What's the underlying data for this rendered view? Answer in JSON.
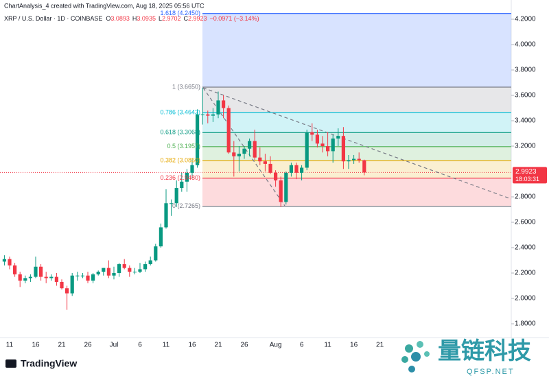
{
  "header": {
    "credit": "ChartAnalysis_4 created with TradingView.com, Aug 18, 2025 05:56 UTC",
    "symbol": "XRP / U.S. Dollar · 1D · COINBASE",
    "fields": [
      {
        "key": "O",
        "value": "3.0893"
      },
      {
        "key": "H",
        "value": "3.0935"
      },
      {
        "key": "L",
        "value": "2.9702"
      },
      {
        "key": "C",
        "value": "2.9923"
      }
    ],
    "change": "−0.0971 (−3.14%)"
  },
  "branding": {
    "logo": "TradingView",
    "watermark": "量链科技",
    "watermark_url": "QFSP.NET"
  },
  "chart_data": {
    "type": "candlestick",
    "categories": [
      null,
      "11",
      null,
      null,
      null,
      null,
      "16",
      null,
      null,
      null,
      null,
      "21",
      null,
      null,
      null,
      null,
      "26",
      null,
      null,
      null,
      null,
      "Jul",
      null,
      null,
      null,
      null,
      "6",
      null,
      null,
      null,
      null,
      "11",
      null,
      null,
      null,
      null,
      "16",
      null,
      null,
      null,
      null,
      "21",
      null,
      null,
      null,
      null,
      "26",
      null,
      null,
      null,
      null,
      null,
      "Aug",
      null,
      null,
      null,
      null,
      "6",
      null,
      null,
      null,
      null,
      "11",
      null,
      null,
      null,
      null,
      "16",
      null,
      null,
      null,
      null,
      "21"
    ],
    "open": [
      2.29,
      2.31,
      2.26,
      2.19,
      2.14,
      2.16,
      2.17,
      2.25,
      2.17,
      2.16,
      2.17,
      2.13,
      2.08,
      2.04,
      2.18,
      2.18,
      2.18,
      2.14,
      2.19,
      2.21,
      2.24,
      2.18,
      2.2,
      2.27,
      2.24,
      2.21,
      2.21,
      2.23,
      2.27,
      2.3,
      2.41,
      2.56,
      2.75,
      2.75,
      2.87,
      2.92,
      2.99,
      3.05,
      3.45,
      3.45,
      3.44,
      3.45,
      3.56,
      3.5,
      3.15,
      3.12,
      3.14,
      3.18,
      3.24,
      3.11,
      3.08,
      3.06,
      2.99,
      2.93,
      2.76,
      2.99,
      3.05,
      2.99,
      3.03,
      3.31,
      3.29,
      3.22,
      3.2,
      3.16,
      3.26,
      3.28,
      3.08,
      3.09,
      3.1,
      3.0893,
      null,
      null,
      null
    ],
    "high": [
      2.34,
      2.33,
      2.28,
      2.21,
      2.18,
      2.19,
      2.33,
      2.27,
      2.21,
      2.19,
      2.2,
      2.15,
      2.1,
      2.2,
      2.21,
      2.2,
      2.21,
      2.2,
      2.22,
      2.24,
      2.3,
      2.25,
      2.28,
      2.31,
      2.26,
      2.24,
      2.28,
      2.29,
      2.33,
      2.43,
      2.59,
      2.86,
      2.78,
      2.93,
      2.99,
      3.02,
      3.1,
      3.49,
      3.66,
      3.48,
      3.5,
      3.63,
      3.6,
      3.52,
      3.24,
      3.2,
      3.2,
      3.26,
      3.33,
      3.19,
      3.14,
      3.12,
      3.01,
      2.96,
      3.0,
      3.07,
      3.07,
      3.05,
      3.33,
      3.38,
      3.33,
      3.28,
      3.31,
      3.29,
      3.34,
      3.35,
      3.13,
      3.13,
      3.15,
      3.0935,
      null,
      null,
      null
    ],
    "low": [
      2.26,
      2.23,
      2.17,
      2.09,
      2.12,
      2.13,
      2.16,
      2.14,
      2.12,
      2.14,
      2.1,
      2.07,
      1.91,
      2.02,
      2.14,
      2.16,
      2.12,
      2.12,
      2.18,
      2.18,
      2.16,
      2.15,
      2.17,
      2.23,
      2.17,
      2.19,
      2.2,
      2.21,
      2.26,
      2.29,
      2.4,
      2.55,
      2.65,
      2.72,
      2.84,
      2.84,
      2.95,
      3.03,
      3.37,
      3.38,
      3.39,
      3.42,
      3.42,
      3.14,
      2.96,
      3.0,
      3.1,
      3.12,
      3.09,
      3.05,
      3.0,
      2.98,
      2.88,
      2.72,
      2.74,
      2.96,
      2.94,
      2.93,
      3.01,
      3.24,
      3.19,
      3.15,
      3.12,
      3.07,
      3.2,
      3.02,
      3.02,
      3.06,
      3.07,
      2.9702,
      null,
      null,
      null
    ],
    "close": [
      2.31,
      2.26,
      2.19,
      2.14,
      2.16,
      2.17,
      2.25,
      2.17,
      2.16,
      2.17,
      2.13,
      2.08,
      2.04,
      2.18,
      2.18,
      2.18,
      2.14,
      2.19,
      2.21,
      2.24,
      2.18,
      2.2,
      2.27,
      2.24,
      2.21,
      2.21,
      2.23,
      2.27,
      2.3,
      2.41,
      2.56,
      2.75,
      2.75,
      2.87,
      2.92,
      2.99,
      3.05,
      3.45,
      3.45,
      3.44,
      3.45,
      3.56,
      3.5,
      3.15,
      3.12,
      3.14,
      3.18,
      3.24,
      3.11,
      3.08,
      3.06,
      2.99,
      2.93,
      2.76,
      2.99,
      3.05,
      2.99,
      3.03,
      3.31,
      3.29,
      3.22,
      3.2,
      3.16,
      3.26,
      3.28,
      3.08,
      3.09,
      3.1,
      3.09,
      2.9923,
      null,
      null,
      null
    ],
    "up_color": "#089981",
    "down_color": "#f23645",
    "ylim": [
      1.7,
      4.3
    ],
    "yticks": [
      {
        "value": 1.8,
        "label": "1.8000"
      },
      {
        "value": 2.0,
        "label": "2.0000"
      },
      {
        "value": 2.2,
        "label": "2.2000"
      },
      {
        "value": 2.4,
        "label": "2.4000"
      },
      {
        "value": 2.6,
        "label": "2.6000"
      },
      {
        "value": 2.8,
        "label": "2.8000"
      },
      {
        "value": 3.2,
        "label": "3.2000"
      },
      {
        "value": 3.4,
        "label": "3.4000"
      },
      {
        "value": 3.6,
        "label": "3.6000"
      },
      {
        "value": 3.8,
        "label": "3.8000"
      },
      {
        "value": 4.0,
        "label": "4.0000"
      },
      {
        "value": 4.2,
        "label": "4.2000"
      }
    ],
    "fib_levels": [
      {
        "value": 4.245,
        "label": "1.618 (4.2450)",
        "color": "#2962ff"
      },
      {
        "value": 3.665,
        "label": "1 (3.6650)",
        "color": "#787b86"
      },
      {
        "value": 3.4643,
        "label": "0.786 (3.4643)",
        "color": "#00bcd4"
      },
      {
        "value": 3.3068,
        "label": "0.618 (3.3068)",
        "color": "#089981"
      },
      {
        "value": 3.1957,
        "label": "0.5 (3.1957)",
        "color": "#4caf50"
      },
      {
        "value": 3.085,
        "label": "0.382 (3.0850)",
        "color": "#e6a700"
      },
      {
        "value": 2.948,
        "label": "0.236 (2.9480)",
        "color": "#f23645"
      },
      {
        "value": 2.7265,
        "label": "0 (2.7265)",
        "color": "#787b86"
      }
    ],
    "last_price": {
      "value": 2.9923,
      "label": "2.9923"
    },
    "countdown": "18:03:31"
  }
}
